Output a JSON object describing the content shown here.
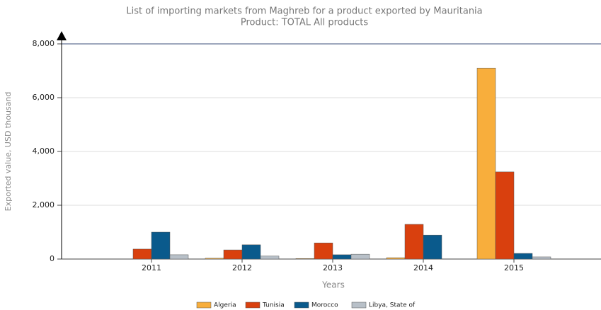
{
  "chart_data": {
    "type": "bar",
    "title": "List of importing markets from Maghreb for a product exported by Mauritania",
    "subtitle": "Product: TOTAL All products",
    "x_label": "Years",
    "y_label": "Exported value, USD thousand",
    "categories": [
      "2011",
      "2012",
      "2013",
      "2014",
      "2015"
    ],
    "series": [
      {
        "name": "Algeria",
        "color": "#f8ae3c",
        "values": [
          0,
          30,
          20,
          50,
          7100
        ]
      },
      {
        "name": "Tunisia",
        "color": "#d9400e",
        "values": [
          370,
          340,
          600,
          1290,
          3240
        ]
      },
      {
        "name": "Morocco",
        "color": "#0a5a8c",
        "values": [
          1000,
          530,
          160,
          890,
          210
        ]
      },
      {
        "name": "Libya, State of",
        "color": "#b8c0c8",
        "values": [
          160,
          110,
          180,
          0,
          80
        ]
      }
    ],
    "ylim": [
      0,
      8000
    ],
    "yticks": [
      0,
      {
        "value": 2000,
        "label": "2,000"
      },
      {
        "value": 4000,
        "label": "4,000"
      },
      {
        "value": 6000,
        "label": "6,000"
      },
      {
        "value": 8000,
        "label": "8,000"
      }
    ],
    "grid": true,
    "legend": "bottom"
  }
}
